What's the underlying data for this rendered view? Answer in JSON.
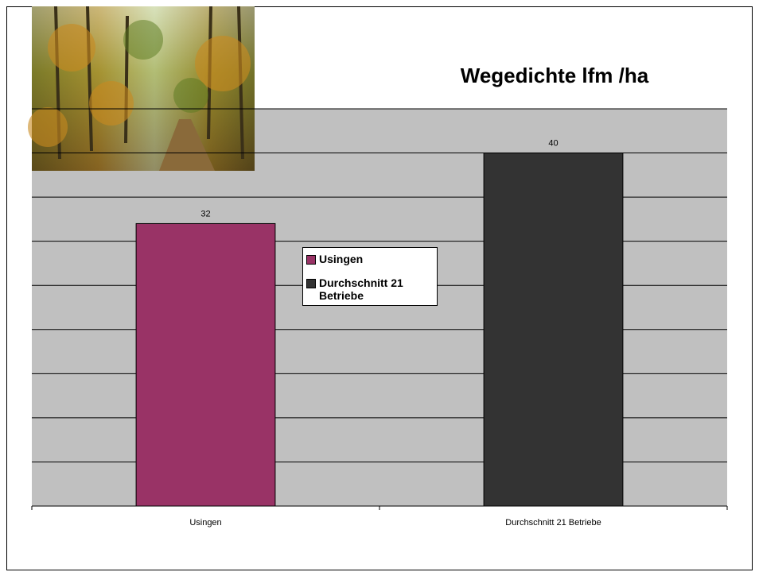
{
  "chart_data": {
    "type": "bar",
    "title": "Wegedichte lfm /ha",
    "categories": [
      "Usingen",
      "Durchschnitt  21 Betriebe"
    ],
    "legend": [
      "Usingen",
      "Durchschnitt 21 Betriebe"
    ],
    "values": [
      32,
      40
    ],
    "colors": [
      "#993366",
      "#333333"
    ],
    "ylim": [
      0,
      45
    ],
    "yticks": [
      0,
      5,
      10,
      15,
      20,
      25,
      30,
      35,
      40,
      45
    ],
    "grid": true
  }
}
